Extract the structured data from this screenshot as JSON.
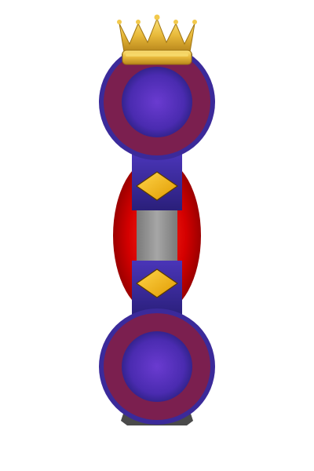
{
  "piece": {
    "type": "king-game-piece",
    "orientation": "vertical",
    "crowned": true,
    "colors": {
      "background": "#ffffff",
      "crown_gold": "#e8b93a",
      "crown_gold_light": "#f7dc6f",
      "crown_gold_dark": "#b8861b",
      "ring_outer": "#3b2a9a",
      "ring_band": "#7b1f4f",
      "disc_center": "#5530c0",
      "disc_edge": "#2a2080",
      "body_red": "#cc0000",
      "body_red_dark": "#7a0000",
      "core_gray": "#8c8c8c",
      "connector": "#3a2a9a",
      "gem": "#f5b400",
      "base_shadow": "#4a4a4a"
    },
    "icons": {
      "crown": "crown-icon",
      "gem": "diamond-icon"
    }
  }
}
